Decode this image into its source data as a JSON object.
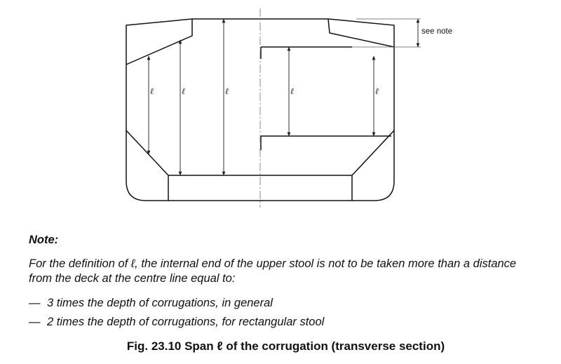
{
  "diagram": {
    "see_note_label": "see note",
    "span_symbol": "ℓ"
  },
  "note": {
    "heading": "Note:",
    "line1": "For the definition of ℓ, the internal end of the upper stool is not to be taken more than a distance",
    "line2": "from the deck at the centre line equal to:",
    "bullets": [
      {
        "dash": "—",
        "text": "3 times the depth of corrugations, in general"
      },
      {
        "dash": "—",
        "text": "2 times the depth of corrugations, for rectangular stool"
      }
    ]
  },
  "caption": "Fig. 23.10 Span ℓ of the corrugation (transverse section)"
}
